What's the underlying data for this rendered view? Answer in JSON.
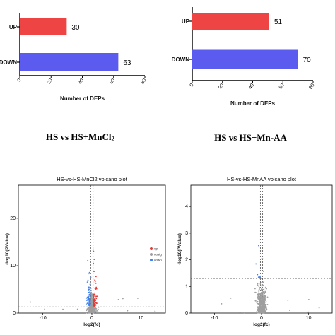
{
  "chart_data": [
    {
      "type": "bar",
      "orientation": "horizontal",
      "categories": [
        "UP",
        "DOWN"
      ],
      "values": [
        30,
        63
      ],
      "colors": [
        "#ef4444",
        "#5b5bf0"
      ],
      "xlabel": "Number of DEPs",
      "xlim": [
        0,
        80
      ],
      "xticks": [
        0,
        20,
        40,
        60,
        80
      ],
      "caption": "HS vs HS+MnCl2"
    },
    {
      "type": "bar",
      "orientation": "horizontal",
      "categories": [
        "UP",
        "DOWN"
      ],
      "values": [
        51,
        70
      ],
      "colors": [
        "#ef4444",
        "#5b5bf0"
      ],
      "xlabel": "Number of DEPs",
      "xlim": [
        0,
        80
      ],
      "xticks": [
        0,
        20,
        40,
        60,
        80
      ],
      "caption": "HS vs HS+Mn-AA"
    },
    {
      "type": "scatter",
      "title": "HS-vs-HS-MnCl2 volcano plot",
      "xlabel": "log2(fc)",
      "ylabel": "-log10(PValue)",
      "xlim": [
        -15,
        15
      ],
      "ylim": [
        0,
        27
      ],
      "xticks": [
        -10,
        0,
        10
      ],
      "yticks": [
        0,
        10,
        20
      ],
      "threshold_y": 1.3,
      "threshold_x": [
        -0.25,
        0.25
      ],
      "legend": [
        "up",
        "nosig",
        "down"
      ],
      "legend_colors": [
        "#e53935",
        "#9e9e9e",
        "#3b82f6"
      ],
      "legend_position": "right"
    },
    {
      "type": "scatter",
      "title": "HS-vs-HS-MnAA volcano plot",
      "xlabel": "log2(fc)",
      "ylabel": "-log10(PValue)",
      "xlim": [
        -15,
        15
      ],
      "ylim": [
        0,
        4.8
      ],
      "xticks": [
        -10,
        0,
        10
      ],
      "yticks": [
        0,
        1,
        2,
        3,
        4
      ],
      "threshold_y": 1.3,
      "threshold_x": [
        -0.25,
        0.25
      ],
      "point_colors": [
        "#e53935",
        "#9e9e9e",
        "#3b82f6"
      ]
    }
  ]
}
